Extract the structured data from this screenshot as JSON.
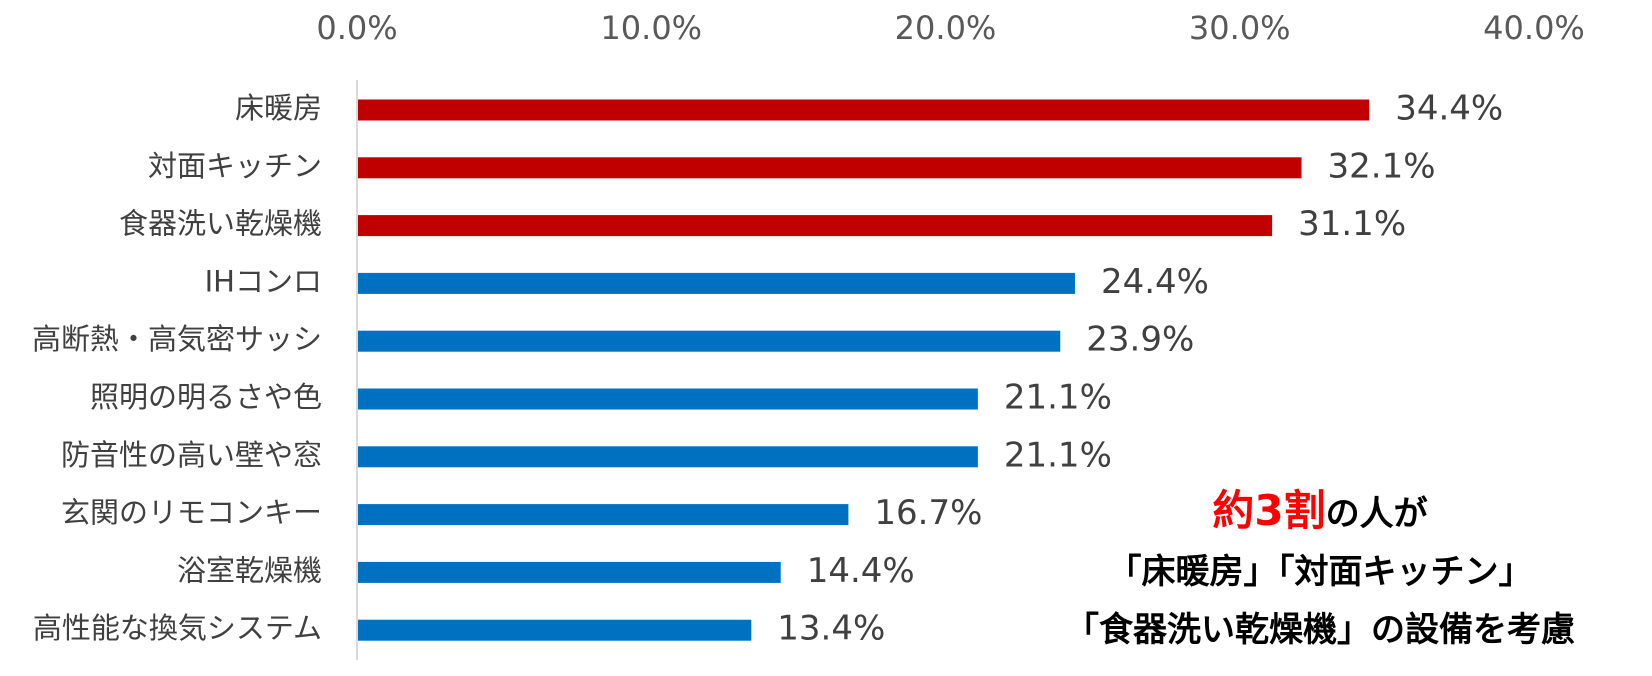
{
  "chart_data": {
    "type": "bar",
    "orientation": "horizontal",
    "categories": [
      "床暖房",
      "対面キッチン",
      "食器洗い乾燥機",
      "IHコンロ",
      "高断熱・高気密サッシ",
      "照明の明るさや色",
      "防音性の高い壁や窓",
      "玄関のリモコンキー",
      "浴室乾燥機",
      "高性能な換気システム"
    ],
    "values": [
      34.4,
      32.1,
      31.1,
      24.4,
      23.9,
      21.1,
      21.1,
      16.7,
      14.4,
      13.4
    ],
    "value_labels": [
      "34.4%",
      "32.1%",
      "31.1%",
      "24.4%",
      "23.9%",
      "21.1%",
      "21.1%",
      "16.7%",
      "14.4%",
      "13.4%"
    ],
    "xlim": [
      0,
      40
    ],
    "x_ticks": [
      "0.0%",
      "10.0%",
      "20.0%",
      "30.0%",
      "40.0%"
    ],
    "x_axis_position": "top",
    "grid": false,
    "colors": {
      "highlight": "#c00000",
      "normal": "#0070c0",
      "axis": "#d9d9d9"
    },
    "highlight_count": 3
  },
  "annotation": {
    "emphasis": "約3割",
    "line1_rest": "の人が",
    "line2": "「床暖房」「対面キッチン」",
    "line3": "「食器洗い乾燥機」の設備を考慮"
  }
}
